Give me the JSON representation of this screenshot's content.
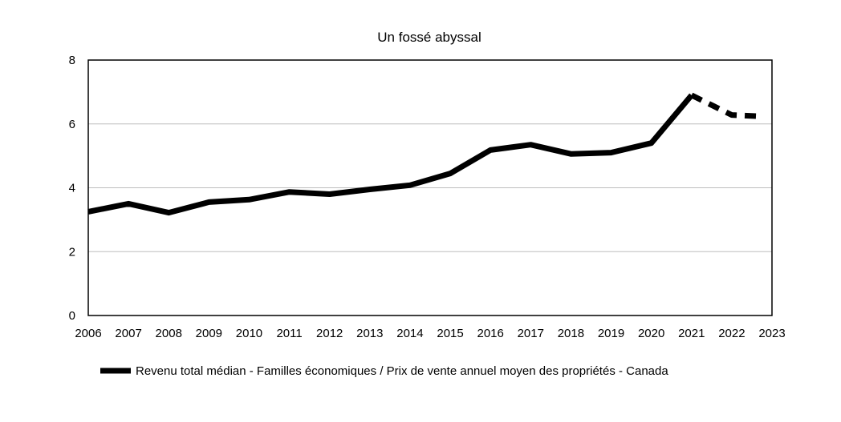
{
  "chart_data": {
    "type": "line",
    "title": "Un fossé abyssal",
    "xlabel": "",
    "ylabel": "",
    "xlim": [
      2006,
      2023
    ],
    "ylim": [
      0,
      8
    ],
    "x_ticks": [
      "2006",
      "2007",
      "2008",
      "2009",
      "2010",
      "2011",
      "2012",
      "2013",
      "2014",
      "2015",
      "2016",
      "2017",
      "2018",
      "2019",
      "2020",
      "2021",
      "2022",
      "2023"
    ],
    "y_ticks": [
      "0",
      "2",
      "4",
      "6",
      "8"
    ],
    "grid": "horizontal",
    "legend_position": "bottom",
    "series": [
      {
        "name": "Revenu total médian - Familles économiques / Prix de vente annuel moyen des propriétés - Canada",
        "color": "#000000",
        "x": [
          2006,
          2007,
          2008,
          2009,
          2010,
          2011,
          2012,
          2013,
          2014,
          2015,
          2016,
          2017,
          2018,
          2019,
          2020,
          2021
        ],
        "values": [
          3.25,
          3.5,
          3.22,
          3.55,
          3.63,
          3.87,
          3.8,
          3.95,
          4.08,
          4.45,
          5.18,
          5.35,
          5.06,
          5.1,
          5.4,
          6.9
        ]
      },
      {
        "name": "",
        "color": "#000000",
        "dashed": true,
        "x": [
          2021,
          2022,
          2022.7
        ],
        "values": [
          6.9,
          6.28,
          6.24
        ]
      }
    ]
  }
}
